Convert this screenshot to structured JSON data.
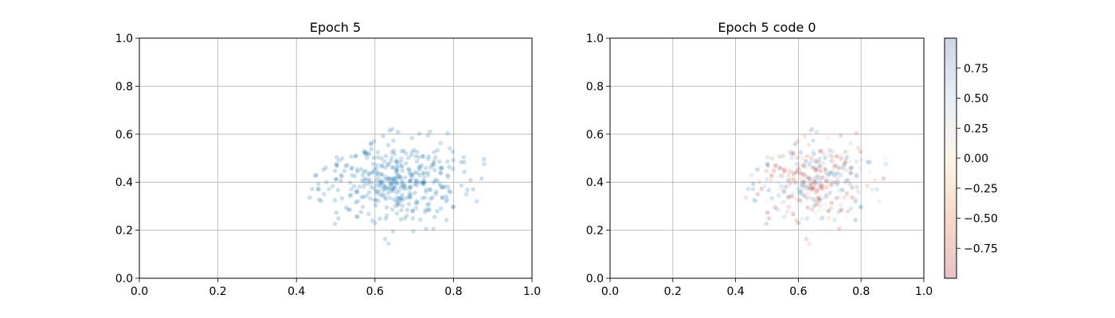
{
  "chart_data": [
    {
      "type": "scatter",
      "title": "Epoch 5",
      "xlim": [
        0.0,
        1.0
      ],
      "ylim": [
        0.0,
        1.0
      ],
      "xticks": [
        "0.0",
        "0.2",
        "0.4",
        "0.6",
        "0.8",
        "1.0"
      ],
      "yticks": [
        "0.0",
        "0.2",
        "0.4",
        "0.6",
        "0.8",
        "1.0"
      ],
      "grid": true,
      "marker_color": "#1f77b4",
      "marker_alpha": 0.22,
      "cluster": {
        "count": 400,
        "center": [
          0.655,
          0.405
        ],
        "std": [
          0.095,
          0.085
        ],
        "x_range": [
          0.4,
          0.89
        ],
        "y_range": [
          0.14,
          0.7
        ]
      }
    },
    {
      "type": "scatter",
      "title": "Epoch 5 code 0",
      "xlim": [
        0.0,
        1.0
      ],
      "ylim": [
        0.0,
        1.0
      ],
      "xticks": [
        "0.0",
        "0.2",
        "0.4",
        "0.6",
        "0.8",
        "1.0"
      ],
      "yticks": [
        "0.0",
        "0.2",
        "0.4",
        "0.6",
        "0.8",
        "1.0"
      ],
      "grid": true,
      "marker_alpha": 0.22,
      "colormap": "RdBu",
      "color_range": [
        -1.0,
        1.0
      ],
      "colorbar_ticks": [
        "0.75",
        "0.50",
        "0.25",
        "0.00",
        "−0.25",
        "−0.50",
        "−0.75"
      ],
      "colorbar_tick_values": [
        0.75,
        0.5,
        0.25,
        0.0,
        -0.25,
        -0.5,
        -0.75
      ],
      "cluster": {
        "count": 400,
        "center": [
          0.655,
          0.405
        ],
        "std": [
          0.095,
          0.085
        ],
        "x_range": [
          0.4,
          0.89
        ],
        "y_range": [
          0.14,
          0.7
        ]
      }
    }
  ]
}
